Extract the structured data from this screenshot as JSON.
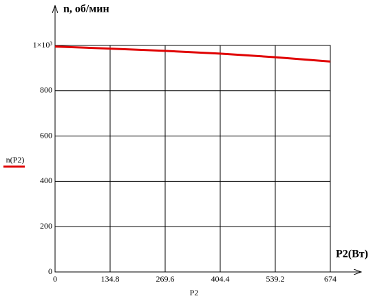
{
  "chart_data": {
    "type": "line",
    "y_axis_label": "n, об/мин",
    "x_axis_label": "P2(Вт)",
    "x_variable": "P2",
    "x": [
      0,
      134.8,
      269.6,
      404.4,
      539.2,
      674
    ],
    "series": [
      {
        "name": "n(P2)",
        "color": "#e00000",
        "values": [
          995,
          986,
          976,
          964,
          948,
          929
        ]
      }
    ],
    "xlim": [
      0,
      674
    ],
    "ylim": [
      0,
      1000
    ],
    "xticks": [
      0,
      134.8,
      269.6,
      404.4,
      539.2,
      674
    ],
    "yticks": [
      0,
      200,
      400,
      600,
      800,
      {
        "value": 1000,
        "label": "1×10³"
      }
    ],
    "grid": true
  }
}
